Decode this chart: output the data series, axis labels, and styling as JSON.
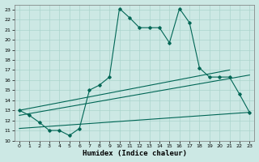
{
  "title": "",
  "xlabel": "Humidex (Indice chaleur)",
  "background_color": "#cce8e4",
  "grid_color": "#aad4cc",
  "line_color": "#006655",
  "xlim": [
    -0.5,
    23.5
  ],
  "ylim": [
    10.0,
    23.5
  ],
  "yticks": [
    10,
    11,
    12,
    13,
    14,
    15,
    16,
    17,
    18,
    19,
    20,
    21,
    22,
    23
  ],
  "xticks": [
    0,
    1,
    2,
    3,
    4,
    5,
    6,
    7,
    8,
    9,
    10,
    11,
    12,
    13,
    14,
    15,
    16,
    17,
    18,
    19,
    20,
    21,
    22,
    23
  ],
  "line1_x": [
    0,
    1,
    2,
    3,
    4,
    5,
    6,
    7,
    8,
    9,
    10,
    11,
    12,
    13,
    14,
    15,
    16,
    17,
    18,
    19,
    20,
    21,
    22,
    23
  ],
  "line1_y": [
    13.0,
    12.5,
    11.8,
    11.0,
    11.0,
    10.5,
    11.2,
    15.0,
    15.5,
    16.3,
    23.1,
    22.2,
    21.2,
    21.2,
    21.2,
    19.7,
    23.1,
    21.7,
    17.2,
    16.3,
    16.3,
    16.3,
    14.6,
    12.8
  ],
  "line2_x": [
    0,
    21
  ],
  "line2_y": [
    13.0,
    17.0
  ],
  "line3_x": [
    0,
    23
  ],
  "line3_y": [
    12.5,
    16.5
  ],
  "line4_x": [
    0,
    23
  ],
  "line4_y": [
    11.2,
    12.8
  ]
}
